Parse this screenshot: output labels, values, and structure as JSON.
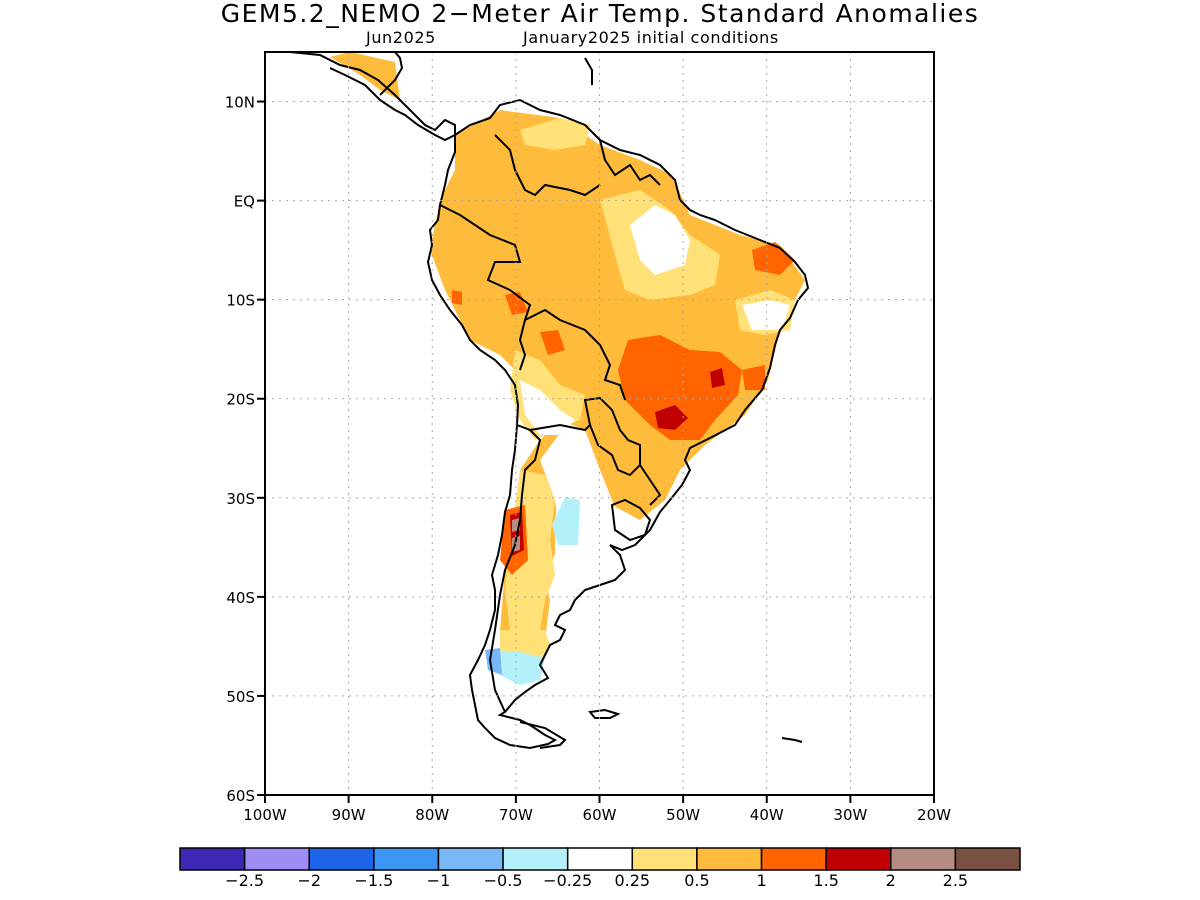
{
  "title": "GEM5.2_NEMO 2−Meter Air Temp. Standard Anomalies",
  "subtitle_left": "Jun2025",
  "subtitle_right": "January2025 initial conditions",
  "map": {
    "lon_range": [
      -100,
      -20
    ],
    "lat_range": [
      -60,
      15
    ],
    "grid": "dotted",
    "lat_ticks": [
      {
        "v": 10,
        "label": "10N"
      },
      {
        "v": 0,
        "label": "EQ"
      },
      {
        "v": -10,
        "label": "10S"
      },
      {
        "v": -20,
        "label": "20S"
      },
      {
        "v": -30,
        "label": "30S"
      },
      {
        "v": -40,
        "label": "40S"
      },
      {
        "v": -50,
        "label": "50S"
      },
      {
        "v": -60,
        "label": "60S"
      }
    ],
    "lon_ticks": [
      {
        "v": -100,
        "label": "100W"
      },
      {
        "v": -90,
        "label": "90W"
      },
      {
        "v": -80,
        "label": "80W"
      },
      {
        "v": -70,
        "label": "70W"
      },
      {
        "v": -60,
        "label": "60W"
      },
      {
        "v": -50,
        "label": "50W"
      },
      {
        "v": -40,
        "label": "40W"
      },
      {
        "v": -30,
        "label": "30W"
      },
      {
        "v": -20,
        "label": "20W"
      }
    ]
  },
  "colorbar": {
    "colors": [
      "#3b28b4",
      "#9f8cf4",
      "#1e64e8",
      "#3c96f4",
      "#78b8f8",
      "#b4f0fa",
      "#ffffff",
      "#ffe178",
      "#ffbb3c",
      "#ff6400",
      "#c00000",
      "#b48c82",
      "#7a5040"
    ],
    "labels": [
      "−2.5",
      "−2",
      "−1.5",
      "−1",
      "−0.5",
      "−0.25",
      "0.25",
      "0.5",
      "1",
      "1.5",
      "2",
      "2.5"
    ]
  }
}
